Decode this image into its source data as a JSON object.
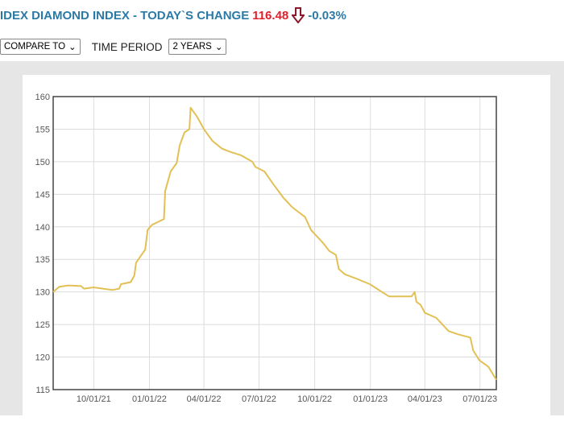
{
  "header": {
    "title": "IDEX DIAMOND INDEX - TODAY`S CHANGE",
    "value": "116.48",
    "change": "-0.03%",
    "arrow_icon": "down-arrow-icon",
    "colors": {
      "title": "#2b7aa6",
      "value": "#e0202a",
      "arrow": "#8b1a2a"
    }
  },
  "controls": {
    "compare_label": "COMPARE TO",
    "time_period_label": "TIME PERIOD",
    "time_period_value": "2 YEARS"
  },
  "chart_data": {
    "type": "line",
    "ylim": [
      115,
      160
    ],
    "yticks": [
      115,
      120,
      125,
      130,
      135,
      140,
      145,
      150,
      155,
      160
    ],
    "xlim": [
      "2021-07-26",
      "2023-07-28"
    ],
    "xticks": [
      "2021-10-01",
      "2022-01-01",
      "2022-04-01",
      "2022-07-01",
      "2022-10-01",
      "2023-01-01",
      "2023-04-01",
      "2023-07-01"
    ],
    "xtick_labels": [
      "10/01/21",
      "01/01/22",
      "04/01/22",
      "07/01/22",
      "10/01/22",
      "01/01/23",
      "04/01/23",
      "07/01/23"
    ],
    "grid": true,
    "line_color": "#e2c055",
    "series": [
      {
        "points": [
          [
            "2021-07-26",
            130.0
          ],
          [
            "2021-08-05",
            130.8
          ],
          [
            "2021-08-20",
            131.0
          ],
          [
            "2021-09-10",
            130.9
          ],
          [
            "2021-09-15",
            130.5
          ],
          [
            "2021-10-01",
            130.7
          ],
          [
            "2021-11-01",
            130.3
          ],
          [
            "2021-11-12",
            130.5
          ],
          [
            "2021-11-15",
            131.2
          ],
          [
            "2021-12-01",
            131.5
          ],
          [
            "2021-12-07",
            132.5
          ],
          [
            "2021-12-10",
            134.5
          ],
          [
            "2021-12-25",
            136.5
          ],
          [
            "2021-12-29",
            139.5
          ],
          [
            "2022-01-05",
            140.3
          ],
          [
            "2022-01-25",
            141.2
          ],
          [
            "2022-01-27",
            145.5
          ],
          [
            "2022-02-05",
            148.5
          ],
          [
            "2022-02-15",
            149.8
          ],
          [
            "2022-02-20",
            152.5
          ],
          [
            "2022-02-28",
            154.5
          ],
          [
            "2022-03-08",
            155.0
          ],
          [
            "2022-03-10",
            158.3
          ],
          [
            "2022-03-20",
            157.0
          ],
          [
            "2022-04-01",
            155.0
          ],
          [
            "2022-04-15",
            153.2
          ],
          [
            "2022-05-01",
            152.0
          ],
          [
            "2022-05-15",
            151.5
          ],
          [
            "2022-06-01",
            151.0
          ],
          [
            "2022-06-20",
            150.0
          ],
          [
            "2022-06-25",
            149.2
          ],
          [
            "2022-07-10",
            148.5
          ],
          [
            "2022-07-25",
            146.5
          ],
          [
            "2022-08-10",
            144.5
          ],
          [
            "2022-08-25",
            143.0
          ],
          [
            "2022-09-15",
            141.5
          ],
          [
            "2022-09-25",
            139.5
          ],
          [
            "2022-10-15",
            137.5
          ],
          [
            "2022-10-25",
            136.3
          ],
          [
            "2022-11-05",
            135.7
          ],
          [
            "2022-11-10",
            133.5
          ],
          [
            "2022-11-20",
            132.7
          ],
          [
            "2022-12-10",
            132.0
          ],
          [
            "2022-12-31",
            131.2
          ],
          [
            "2023-01-20",
            130.0
          ],
          [
            "2023-02-01",
            129.3
          ],
          [
            "2023-03-10",
            129.3
          ],
          [
            "2023-03-15",
            130.0
          ],
          [
            "2023-03-18",
            128.5
          ],
          [
            "2023-03-25",
            128.0
          ],
          [
            "2023-04-01",
            126.8
          ],
          [
            "2023-04-20",
            126.0
          ],
          [
            "2023-05-10",
            124.0
          ],
          [
            "2023-05-25",
            123.5
          ],
          [
            "2023-06-15",
            123.0
          ],
          [
            "2023-06-20",
            121.0
          ],
          [
            "2023-06-30",
            119.5
          ],
          [
            "2023-07-15",
            118.5
          ],
          [
            "2023-07-28",
            116.5
          ]
        ]
      }
    ]
  }
}
